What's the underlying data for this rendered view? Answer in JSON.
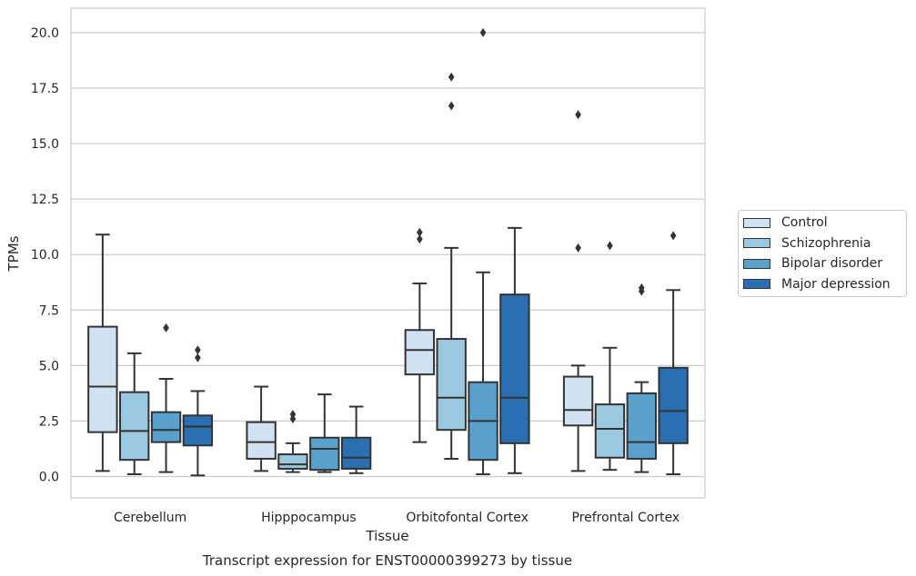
{
  "chart_data": {
    "type": "box",
    "title": "Transcript expression for ENST00000399273 by tissue",
    "xlabel": "Tissue",
    "ylabel": "TPMs",
    "ylim": [
      -0.9,
      21.1
    ],
    "yticks": [
      "0.0",
      "2.5",
      "5.0",
      "7.5",
      "10.0",
      "12.5",
      "15.0",
      "17.5",
      "20.0"
    ],
    "grid": true,
    "legend_position": "right",
    "categories": [
      "Cerebellum",
      "Hipppocampus",
      "Orbitofontal Cortex",
      "Prefrontal Cortex"
    ],
    "series": [
      {
        "name": "Control",
        "color": "#d0e1f2",
        "boxes": [
          {
            "whislo": 0.25,
            "q1": 2.0,
            "med": 4.05,
            "q3": 6.75,
            "whishi": 10.9,
            "fliers": []
          },
          {
            "whislo": 0.25,
            "q1": 0.8,
            "med": 1.55,
            "q3": 2.45,
            "whishi": 4.05,
            "fliers": []
          },
          {
            "whislo": 1.55,
            "q1": 4.6,
            "med": 5.7,
            "q3": 6.6,
            "whishi": 8.7,
            "fliers": [
              10.7,
              11.0
            ]
          },
          {
            "whislo": 0.25,
            "q1": 2.3,
            "med": 3.0,
            "q3": 4.5,
            "whishi": 5.0,
            "fliers": [
              10.3,
              16.3
            ]
          }
        ]
      },
      {
        "name": "Schizophrenia",
        "color": "#9ac8e0",
        "boxes": [
          {
            "whislo": 0.1,
            "q1": 0.75,
            "med": 2.05,
            "q3": 3.8,
            "whishi": 5.55,
            "fliers": []
          },
          {
            "whislo": 0.2,
            "q1": 0.35,
            "med": 0.55,
            "q3": 1.0,
            "whishi": 1.5,
            "fliers": [
              2.6,
              2.8
            ]
          },
          {
            "whislo": 0.8,
            "q1": 2.1,
            "med": 3.55,
            "q3": 6.2,
            "whishi": 10.3,
            "fliers": [
              16.7,
              18.0
            ]
          },
          {
            "whislo": 0.3,
            "q1": 0.85,
            "med": 2.15,
            "q3": 3.25,
            "whishi": 5.8,
            "fliers": [
              10.4
            ]
          }
        ]
      },
      {
        "name": "Bipolar disorder",
        "color": "#5aa0cd",
        "boxes": [
          {
            "whislo": 0.2,
            "q1": 1.55,
            "med": 2.1,
            "q3": 2.9,
            "whishi": 4.4,
            "fliers": [
              6.7
            ]
          },
          {
            "whislo": 0.2,
            "q1": 0.3,
            "med": 1.25,
            "q3": 1.75,
            "whishi": 3.7,
            "fliers": []
          },
          {
            "whislo": 0.1,
            "q1": 0.75,
            "med": 2.5,
            "q3": 4.25,
            "whishi": 9.2,
            "fliers": [
              20.0
            ]
          },
          {
            "whislo": 0.2,
            "q1": 0.8,
            "med": 1.55,
            "q3": 3.75,
            "whishi": 4.25,
            "fliers": [
              8.35,
              8.5
            ]
          }
        ]
      },
      {
        "name": "Major depression",
        "color": "#2a6fb1",
        "boxes": [
          {
            "whislo": 0.05,
            "q1": 1.4,
            "med": 2.25,
            "q3": 2.75,
            "whishi": 3.85,
            "fliers": [
              5.35,
              5.7
            ]
          },
          {
            "whislo": 0.15,
            "q1": 0.35,
            "med": 0.85,
            "q3": 1.75,
            "whishi": 3.15,
            "fliers": []
          },
          {
            "whislo": 0.15,
            "q1": 1.5,
            "med": 3.55,
            "q3": 8.2,
            "whishi": 11.2,
            "fliers": []
          },
          {
            "whislo": 0.1,
            "q1": 1.5,
            "med": 2.95,
            "q3": 4.9,
            "whishi": 8.4,
            "fliers": [
              10.85
            ]
          }
        ]
      }
    ]
  }
}
